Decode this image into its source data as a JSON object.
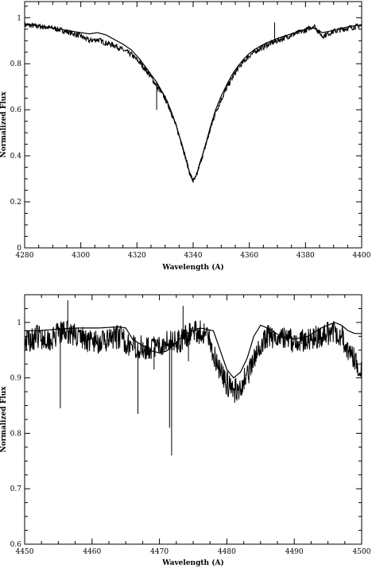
{
  "chart_data": [
    {
      "type": "line",
      "xlabel": "Wavelength (A)",
      "ylabel": "Normalized Flux",
      "xlim": [
        4280,
        4400
      ],
      "ylim": [
        0,
        1.07
      ],
      "x_ticks": [
        4280,
        4300,
        4320,
        4340,
        4360,
        4380,
        4400
      ],
      "y_ticks": [
        0,
        0.2,
        0.4,
        0.6,
        0.8,
        1
      ],
      "x_tick_labels": [
        "4280",
        "4300",
        "4320",
        "4340",
        "4360",
        "4380",
        "4400"
      ],
      "y_tick_labels": [
        "0",
        "0.2",
        "0.4",
        "0.6",
        "0.8",
        "1"
      ],
      "grid": false,
      "series": [
        {
          "role": "model",
          "x": [
            4280,
            4285,
            4290,
            4295,
            4300,
            4303,
            4306,
            4309,
            4312,
            4315,
            4318,
            4321,
            4324,
            4327,
            4330,
            4332,
            4334,
            4336,
            4338,
            4339,
            4340,
            4341,
            4342,
            4344,
            4346,
            4348,
            4350,
            4352,
            4354,
            4356,
            4358,
            4360,
            4363,
            4366,
            4370,
            4375,
            4380,
            4383,
            4386,
            4390,
            4395,
            4400
          ],
          "y": [
            0.97,
            0.965,
            0.955,
            0.945,
            0.935,
            0.93,
            0.935,
            0.925,
            0.905,
            0.885,
            0.86,
            0.82,
            0.77,
            0.72,
            0.655,
            0.6,
            0.53,
            0.45,
            0.36,
            0.315,
            0.295,
            0.31,
            0.35,
            0.43,
            0.52,
            0.6,
            0.66,
            0.71,
            0.755,
            0.79,
            0.82,
            0.845,
            0.87,
            0.89,
            0.91,
            0.93,
            0.95,
            0.955,
            0.935,
            0.945,
            0.96,
            0.97
          ]
        },
        {
          "role": "observed",
          "x": [
            4280,
            4285,
            4290,
            4295,
            4300,
            4303,
            4306,
            4309,
            4312,
            4315,
            4318,
            4321,
            4324,
            4327,
            4330,
            4332,
            4334,
            4336,
            4338,
            4339,
            4340,
            4341,
            4342,
            4344,
            4346,
            4348,
            4350,
            4352,
            4354,
            4356,
            4358,
            4360,
            4363,
            4366,
            4370,
            4375,
            4380,
            4383,
            4386,
            4390,
            4395,
            4400
          ],
          "y": [
            0.97,
            0.962,
            0.955,
            0.94,
            0.92,
            0.9,
            0.905,
            0.89,
            0.88,
            0.86,
            0.84,
            0.805,
            0.76,
            0.705,
            0.65,
            0.595,
            0.525,
            0.45,
            0.36,
            0.315,
            0.29,
            0.305,
            0.35,
            0.425,
            0.51,
            0.59,
            0.645,
            0.695,
            0.74,
            0.78,
            0.81,
            0.835,
            0.86,
            0.88,
            0.9,
            0.925,
            0.945,
            0.965,
            0.92,
            0.94,
            0.955,
            0.965
          ]
        }
      ],
      "spikes": [
        {
          "x": 4303,
          "y": 0.89
        },
        {
          "x": 4327,
          "y": 0.6
        },
        {
          "x": 4327.5,
          "y": 0.68
        },
        {
          "x": 4369,
          "y": 0.98
        }
      ]
    },
    {
      "type": "line",
      "xlabel": "Wavelength (A)",
      "ylabel": "Normalized Flux",
      "xlim": [
        4450,
        4500
      ],
      "ylim": [
        0.6,
        1.05
      ],
      "x_ticks": [
        4450,
        4460,
        4470,
        4480,
        4490,
        4500
      ],
      "y_ticks": [
        0.6,
        0.7,
        0.8,
        0.9,
        1
      ],
      "x_tick_labels": [
        "4450",
        "4460",
        "4470",
        "4480",
        "4490",
        "4500"
      ],
      "y_tick_labels": [
        "0.6",
        "0.7",
        "0.8",
        "0.9",
        "1"
      ],
      "grid": false,
      "series": [
        {
          "role": "model",
          "x": [
            4450,
            4452,
            4455,
            4458,
            4461,
            4464,
            4465,
            4466,
            4467,
            4468,
            4469,
            4470,
            4471,
            4472,
            4473,
            4474,
            4476,
            4478,
            4479,
            4480,
            4481,
            4482,
            4483,
            4484,
            4485,
            4486,
            4488,
            4490,
            4492,
            4494,
            4496,
            4497,
            4498,
            4499,
            4500
          ],
          "y": [
            0.985,
            0.985,
            0.988,
            0.99,
            0.99,
            0.992,
            0.99,
            0.97,
            0.962,
            0.955,
            0.948,
            0.945,
            0.948,
            0.958,
            0.97,
            0.98,
            0.99,
            0.985,
            0.95,
            0.915,
            0.9,
            0.91,
            0.935,
            0.975,
            0.995,
            0.99,
            0.975,
            0.97,
            0.975,
            0.99,
            1.0,
            0.995,
            0.985,
            0.98,
            0.98
          ]
        },
        {
          "role": "observed",
          "x": [
            4450,
            4452,
            4454,
            4456,
            4458,
            4460,
            4462,
            4464,
            4466,
            4468,
            4470,
            4471,
            4473,
            4475,
            4477,
            4478,
            4479,
            4480,
            4481,
            4482,
            4483,
            4484,
            4485,
            4486,
            4488,
            4490,
            4492,
            4494,
            4496,
            4497,
            4498,
            4499,
            4500
          ],
          "y": [
            0.965,
            0.975,
            0.97,
            0.985,
            0.975,
            0.965,
            0.965,
            0.975,
            0.955,
            0.955,
            0.955,
            0.97,
            0.965,
            0.985,
            0.98,
            0.945,
            0.915,
            0.89,
            0.875,
            0.885,
            0.905,
            0.93,
            0.955,
            0.975,
            0.975,
            0.965,
            0.97,
            0.975,
            0.985,
            0.975,
            0.95,
            0.93,
            0.915
          ]
        }
      ],
      "spikes": [
        {
          "x": 4455.3,
          "y": 0.845
        },
        {
          "x": 4456.4,
          "y": 1.04
        },
        {
          "x": 4466.8,
          "y": 0.835
        },
        {
          "x": 4469.2,
          "y": 0.915
        },
        {
          "x": 4471.8,
          "y": 0.76
        },
        {
          "x": 4471.5,
          "y": 0.81
        },
        {
          "x": 4473.5,
          "y": 1.03
        },
        {
          "x": 4474.3,
          "y": 0.93
        }
      ]
    }
  ]
}
